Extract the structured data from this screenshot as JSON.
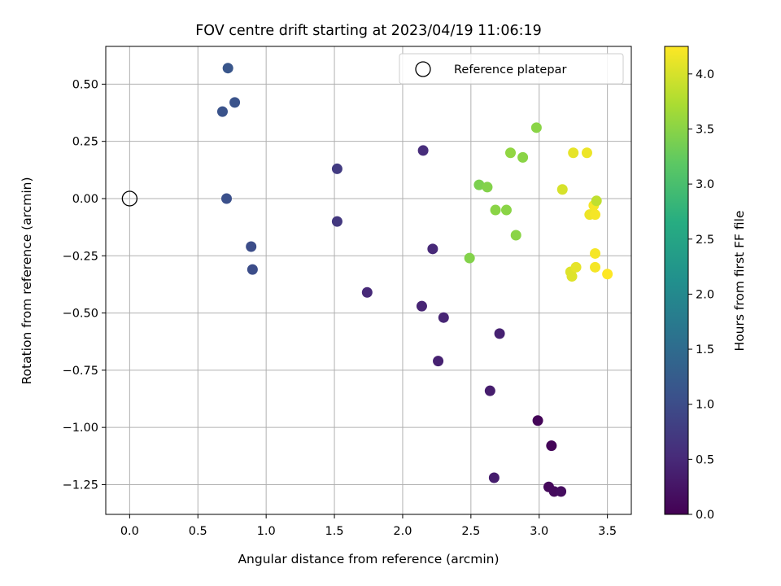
{
  "chart_data": {
    "type": "scatter",
    "title": "FOV centre drift starting at 2023/04/19 11:06:19",
    "xlabel": "Angular distance from reference (arcmin)",
    "ylabel": "Rotation from reference (arcmin)",
    "xlim": [
      -0.175,
      3.675
    ],
    "ylim": [
      -1.38,
      0.665
    ],
    "xticks": [
      0.0,
      0.5,
      1.0,
      1.5,
      2.0,
      2.5,
      3.0,
      3.5
    ],
    "xtick_labels": [
      "0.0",
      "0.5",
      "1.0",
      "1.5",
      "2.0",
      "2.5",
      "3.0",
      "3.5"
    ],
    "yticks": [
      0.5,
      0.25,
      0.0,
      -0.25,
      -0.5,
      -0.75,
      -1.0,
      -1.25
    ],
    "ytick_labels": [
      "0.50",
      "0.25",
      "0.00",
      "−0.25",
      "−0.50",
      "−0.75",
      "−1.00",
      "−1.25"
    ],
    "grid": true,
    "colormap": "viridis",
    "colorbar": {
      "label": "Hours from first FF file",
      "range": [
        0.0,
        4.25
      ],
      "ticks": [
        0.0,
        0.5,
        1.0,
        1.5,
        2.0,
        2.5,
        3.0,
        3.5,
        4.0
      ],
      "tick_labels": [
        "0.0",
        "0.5",
        "1.0",
        "1.5",
        "2.0",
        "2.5",
        "3.0",
        "3.5",
        "4.0"
      ]
    },
    "legend": {
      "placement": "top-right",
      "entries": [
        {
          "label": "Reference platepar",
          "marker": "hollow-circle"
        }
      ]
    },
    "reference_point": {
      "x": 0.0,
      "y": 0.0
    },
    "points": [
      {
        "x": 2.99,
        "y": -0.97,
        "c": 0.05
      },
      {
        "x": 3.09,
        "y": -1.08,
        "c": 0.05
      },
      {
        "x": 3.07,
        "y": -1.26,
        "c": 0.1
      },
      {
        "x": 3.11,
        "y": -1.28,
        "c": 0.12
      },
      {
        "x": 3.16,
        "y": -1.28,
        "c": 0.15
      },
      {
        "x": 2.67,
        "y": -1.22,
        "c": 0.35
      },
      {
        "x": 2.64,
        "y": -0.84,
        "c": 0.35
      },
      {
        "x": 2.26,
        "y": -0.71,
        "c": 0.4
      },
      {
        "x": 2.71,
        "y": -0.59,
        "c": 0.4
      },
      {
        "x": 2.3,
        "y": -0.52,
        "c": 0.45
      },
      {
        "x": 2.14,
        "y": -0.47,
        "c": 0.45
      },
      {
        "x": 1.74,
        "y": -0.41,
        "c": 0.5
      },
      {
        "x": 2.22,
        "y": -0.22,
        "c": 0.5
      },
      {
        "x": 2.15,
        "y": 0.21,
        "c": 0.55
      },
      {
        "x": 1.52,
        "y": -0.1,
        "c": 0.7
      },
      {
        "x": 1.52,
        "y": 0.13,
        "c": 0.75
      },
      {
        "x": 0.9,
        "y": -0.31,
        "c": 1.0
      },
      {
        "x": 0.89,
        "y": -0.21,
        "c": 1.0
      },
      {
        "x": 0.71,
        "y": 0.0,
        "c": 1.05
      },
      {
        "x": 0.68,
        "y": 0.38,
        "c": 1.1
      },
      {
        "x": 0.77,
        "y": 0.42,
        "c": 1.1
      },
      {
        "x": 0.72,
        "y": 0.57,
        "c": 1.15
      },
      {
        "x": 2.49,
        "y": -0.26,
        "c": 3.45
      },
      {
        "x": 2.56,
        "y": 0.06,
        "c": 3.4
      },
      {
        "x": 2.62,
        "y": 0.05,
        "c": 3.45
      },
      {
        "x": 2.68,
        "y": -0.05,
        "c": 3.5
      },
      {
        "x": 2.76,
        "y": -0.05,
        "c": 3.5
      },
      {
        "x": 2.79,
        "y": 0.2,
        "c": 3.55
      },
      {
        "x": 2.83,
        "y": -0.16,
        "c": 3.5
      },
      {
        "x": 2.88,
        "y": 0.18,
        "c": 3.5
      },
      {
        "x": 2.98,
        "y": 0.31,
        "c": 3.5
      },
      {
        "x": 3.17,
        "y": 0.04,
        "c": 4.0
      },
      {
        "x": 3.23,
        "y": -0.32,
        "c": 4.05
      },
      {
        "x": 3.24,
        "y": -0.34,
        "c": 4.05
      },
      {
        "x": 3.27,
        "y": -0.3,
        "c": 4.1
      },
      {
        "x": 3.25,
        "y": 0.2,
        "c": 4.1
      },
      {
        "x": 3.35,
        "y": 0.2,
        "c": 4.15
      },
      {
        "x": 3.37,
        "y": -0.07,
        "c": 4.15
      },
      {
        "x": 3.4,
        "y": -0.03,
        "c": 4.2
      },
      {
        "x": 3.41,
        "y": -0.07,
        "c": 4.2
      },
      {
        "x": 3.42,
        "y": -0.01,
        "c": 3.85
      },
      {
        "x": 3.41,
        "y": -0.24,
        "c": 4.2
      },
      {
        "x": 3.41,
        "y": -0.3,
        "c": 4.2
      },
      {
        "x": 3.5,
        "y": -0.33,
        "c": 4.25
      }
    ]
  }
}
